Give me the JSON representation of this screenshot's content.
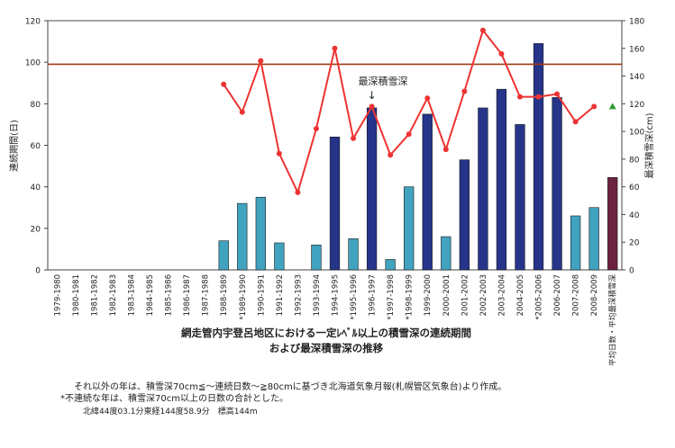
{
  "chart_data": {
    "type": "bar",
    "categories": [
      "1979-1980",
      "1980-1981",
      "1981-1982",
      "1982-1983",
      "1983-1984",
      "1984-1985",
      "1985-1986",
      "1986-1987",
      "1987-1988",
      "1988-1989",
      "*1989-1990",
      "1990-1991",
      "1991-1992",
      "1992-1993",
      "1993-1994",
      "1994-1995",
      "*1995-1996",
      "1996-1997",
      "*1997-1998",
      "*1998-1999",
      "1999-2000",
      "2000-2001",
      "2001-2002",
      "2002-2003",
      "2003-2004",
      "2004-2005",
      "*2005-2006",
      "2006-2007",
      "2007-2008",
      "2008-2009",
      "平均日数・平均最深積雪深"
    ],
    "series": [
      {
        "name": "",
        "axis": "left",
        "values": [
          0,
          0,
          0,
          0,
          0,
          0,
          0,
          0,
          0,
          14,
          32,
          35,
          13,
          0,
          12,
          64,
          15,
          78,
          5,
          40,
          75,
          16,
          53,
          78,
          87,
          70,
          109,
          83,
          26,
          30,
          44.5
        ],
        "bar_types": [
          "light",
          "light",
          "light",
          "light",
          "light",
          "light",
          "light",
          "light",
          "light",
          "light",
          "light",
          "light",
          "light",
          "light",
          "light",
          "dark",
          "light",
          "dark",
          "light",
          "light",
          "dark",
          "light",
          "dark",
          "dark",
          "dark",
          "dark",
          "dark",
          "dark",
          "light",
          "light",
          "avg"
        ]
      },
      {
        "name": "",
        "axis": "right",
        "type": "line",
        "values": [
          null,
          null,
          null,
          null,
          null,
          null,
          null,
          null,
          null,
          134,
          114,
          151,
          84,
          56,
          102,
          160,
          95,
          118,
          83,
          98,
          124,
          87,
          129,
          173,
          156,
          125,
          125,
          127,
          107,
          118,
          null
        ],
        "average_marker": 118
      }
    ],
    "reference_line_left": 99,
    "xlabel": "",
    "ylabel": "連続期間(日)",
    "ylabel_right": "最深積雪深(cm)",
    "ylim": [
      0,
      120
    ],
    "ylim_right": [
      0,
      180
    ],
    "yticks": [
      "0",
      "20",
      "40",
      "60",
      "80",
      "100",
      "120"
    ],
    "yticks_right": [
      "0",
      "20",
      "40",
      "60",
      "80",
      "100",
      "120",
      "140",
      "160",
      "180"
    ],
    "grid": false,
    "annotation": "最深積雪深",
    "annotation_arrow": "↓",
    "title_line1": "網走管内宇登呂地区における一定ﾚﾍﾞﾙ以上の積雪深の連続期間",
    "title_line2": "および最深積雪深の推移",
    "colors": {
      "light": "#41a3c0",
      "dark": "#26348a",
      "avg": "#6b2341",
      "line": "#ee3333",
      "reference": "#a33a12",
      "marker": "#2e9e36"
    }
  },
  "notes": {
    "line1": "それ以外の年は、積雪深70cm≦～連続日数～≧80cmに基づき北海道気象月報(札幌管区気象台)より作成。",
    "line2": "*不連続な年は、積雪深70cm以上の日数の合計とした。",
    "line3": "北緯44度03.1分東経144度58.9分　標高144m"
  }
}
